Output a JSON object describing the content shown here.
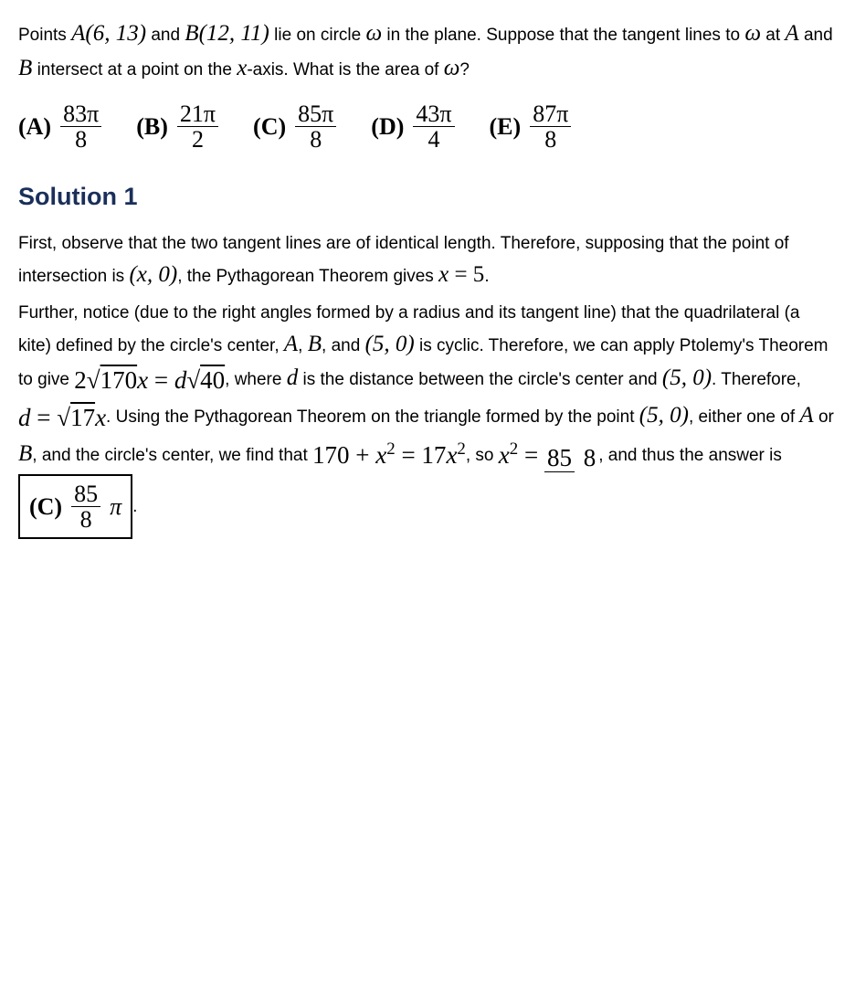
{
  "problem": {
    "stem_pre": "Points ",
    "A_math": "A(6, 13)",
    "and1": " and ",
    "B_math": "B(12, 11)",
    "stem_mid": " lie on circle ",
    "omega1": "ω",
    "stem_mid2": " in the plane. Suppose that the tangent lines to ",
    "omega2": "ω",
    "stem_mid3": " at ",
    "A_var": "A",
    "stem_and": " and ",
    "B_var": "B",
    "stem_end": " intersect at a point on the ",
    "x_var": "x",
    "stem_end2": "-axis. What is the area of ",
    "omega3": "ω",
    "stem_q": "?"
  },
  "choices": {
    "A": {
      "label": "(A)",
      "num": "83π",
      "den": "8"
    },
    "B": {
      "label": "(B)",
      "num": "21π",
      "den": "2"
    },
    "C": {
      "label": "(C)",
      "num": "85π",
      "den": "8"
    },
    "D": {
      "label": "(D)",
      "num": "43π",
      "den": "4"
    },
    "E": {
      "label": "(E)",
      "num": "87π",
      "den": "8"
    }
  },
  "solution": {
    "title": "Solution 1",
    "p1": "First, observe that the two tangent lines are of identical length. Therefore, supposing that the point of intersection is ",
    "p1_math": "(x, 0)",
    "p1b": ", the Pythagorean Theorem gives ",
    "p1_eq": "x = 5",
    "p1_end": ".",
    "p2a": "Further, notice (due to the right angles formed by a radius and its tangent line) that the quadrilateral (a kite) defined by the circle's center, ",
    "p2_A": "A",
    "p2_c1": ", ",
    "p2_B": "B",
    "p2b": ", and ",
    "p2_pt": "(5, 0)",
    "p2c": " is cyclic. Therefore, we can apply Ptolemy's Theorem to give ",
    "p2_lhs_coef": "2",
    "p2_lhs_rad": "170",
    "p2_x1": "x",
    "p2_eq": " = ",
    "p2_rhs_d": "d",
    "p2_rhs_rad": "40",
    "p2d": ", where ",
    "p2_d": "d",
    "p2e": " is the distance between the circle's center and ",
    "p2_pt2": "(5, 0)",
    "p2f": ". Therefore, ",
    "p2_d2": "d",
    "p2_eq2": " = ",
    "p2_rad2": "17",
    "p2_x2": "x",
    "p2g": ". Using the Pythagorean Theorem on the triangle formed by the point ",
    "p2_pt3": "(5, 0)",
    "p2h": ", either one of ",
    "p2_A2": "A",
    "p2_or": " or ",
    "p2_B2": "B",
    "p2i": ", and the circle's center, we find that ",
    "p2_eq3_l": "170 + ",
    "p2_x3": "x",
    "p2_sup": "2",
    "p2_eq3_m": " = 17",
    "p2_x4": "x",
    "p2_sup2": "2",
    "p2j": ", so ",
    "p2_x5": "x",
    "p2_sup3": "2",
    "p2_eq4": " = ",
    "p2_frac_num": "85",
    "p2_frac_den": "8",
    "p2k": ", and thus the answer is ",
    "ans_label": "(C)",
    "ans_num": "85",
    "ans_den": "8",
    "ans_pi": "π",
    "p2_end": "."
  }
}
